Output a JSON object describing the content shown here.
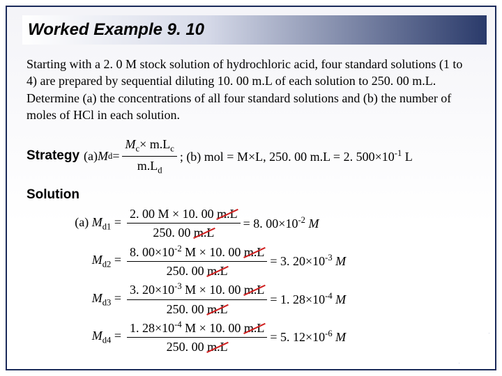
{
  "title": "Worked Example 9. 10",
  "problem": "Starting with a 2. 0 M stock solution of hydrochloric acid, four standard solutions (1 to 4) are prepared by sequential diluting 10. 00 m.L of each solution to 250. 00 m.L. Determine (a) the concentrations of all four standard solutions and (b) the number of moles of HCl in each solution.",
  "strategy": {
    "label": "Strategy",
    "part_a_pre": "(a) ",
    "md_eq": "M",
    "md_sub": "d",
    "equals": " = ",
    "num_a": "M",
    "num_b": "c",
    "num_c": "× m.L",
    "num_d": "c",
    "den_a": "m.L",
    "den_b": "d",
    "part_b": "; (b) mol = M×L, 250. 00 m.L = 2. 500×10",
    "exp_b": "-1",
    "tail_b": " L"
  },
  "solution": {
    "label": "Solution",
    "rows": [
      {
        "lhs_pre": "(a) ",
        "var": "M",
        "sub": "d1",
        "num_l": "2. 00 M × 10. 00 ",
        "num_unit": "m.L",
        "den_l": "250. 00 ",
        "den_unit": "m.L",
        "rhs_a": " = 8. 00×10",
        "rhs_exp": "-2",
        "rhs_b": " M"
      },
      {
        "lhs_pre": "",
        "var": "M",
        "sub": "d2",
        "num_l": "8. 00×10",
        "num_exp": "-2",
        "num_mid": " M × 10. 00 ",
        "num_unit": "m.L",
        "den_l": "250. 00 ",
        "den_unit": "m.L",
        "rhs_a": " = 3. 20×10",
        "rhs_exp": "-3",
        "rhs_b": " M"
      },
      {
        "lhs_pre": "",
        "var": "M",
        "sub": "d3",
        "num_l": "3. 20×10",
        "num_exp": "-3",
        "num_mid": " M × 10. 00 ",
        "num_unit": "m.L",
        "den_l": "250. 00 ",
        "den_unit": "m.L",
        "rhs_a": " = 1. 28×10",
        "rhs_exp": "-4",
        "rhs_b": " M"
      },
      {
        "lhs_pre": "",
        "var": "M",
        "sub": "d4",
        "num_l": "1. 28×10",
        "num_exp": "-4",
        "num_mid": " M × 10. 00 ",
        "num_unit": "m.L",
        "den_l": "250. 00 ",
        "den_unit": "m.L",
        "rhs_a": " = 5. 12×10",
        "rhs_exp": "-6",
        "rhs_b": " M"
      }
    ]
  }
}
